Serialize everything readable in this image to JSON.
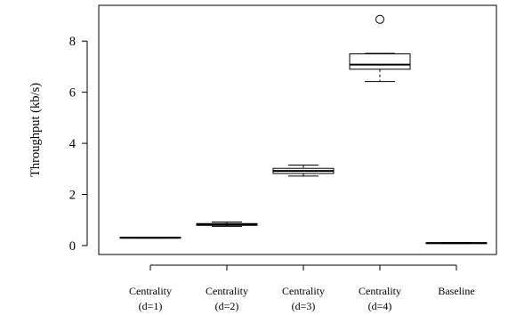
{
  "chart_data": {
    "type": "box",
    "ylabel": "Throughput (kb/s)",
    "ylim": [
      -0.35,
      9.4
    ],
    "yticks": [
      0,
      2,
      4,
      6,
      8
    ],
    "grid": false,
    "categories": [
      {
        "line1": "Centrality",
        "line2": "(d=1)"
      },
      {
        "line1": "Centrality",
        "line2": "(d=2)"
      },
      {
        "line1": "Centrality",
        "line2": "(d=3)"
      },
      {
        "line1": "Centrality",
        "line2": "(d=4)"
      },
      {
        "line1": "Baseline",
        "line2": ""
      }
    ],
    "boxes": [
      {
        "min": 0.29,
        "q1": 0.3,
        "median": 0.31,
        "q3": 0.32,
        "max": 0.33,
        "outliers": []
      },
      {
        "min": 0.75,
        "q1": 0.79,
        "median": 0.82,
        "q3": 0.86,
        "max": 0.92,
        "outliers": []
      },
      {
        "min": 2.72,
        "q1": 2.82,
        "median": 2.92,
        "q3": 3.02,
        "max": 3.15,
        "outliers": []
      },
      {
        "min": 6.42,
        "q1": 6.9,
        "median": 7.08,
        "q3": 7.5,
        "max": 7.52,
        "outliers": [
          8.85
        ]
      },
      {
        "min": 0.08,
        "q1": 0.09,
        "median": 0.1,
        "q3": 0.11,
        "max": 0.12,
        "outliers": []
      }
    ]
  }
}
